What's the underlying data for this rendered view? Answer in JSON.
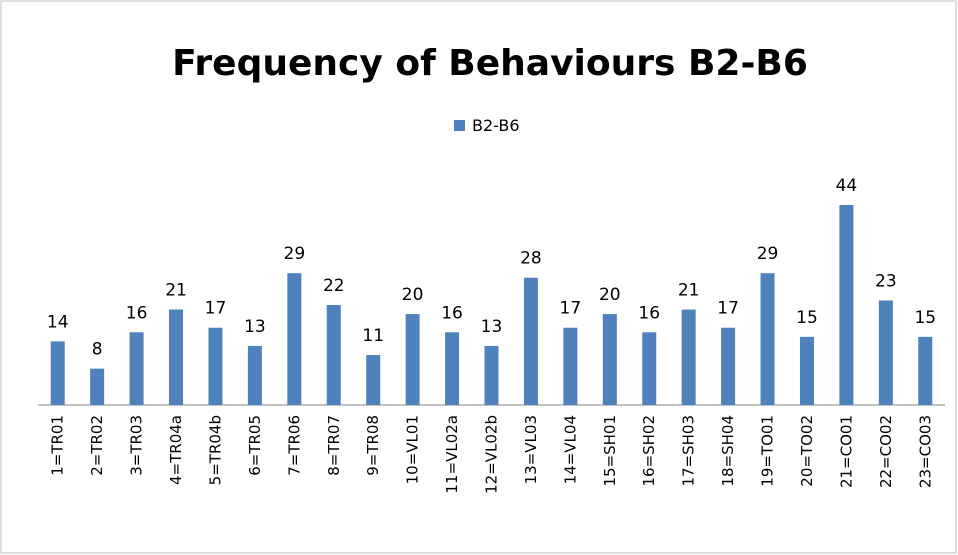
{
  "chart_data": {
    "type": "bar",
    "title": "Frequency of Behaviours B2-B6",
    "categories": [
      "1=TR01",
      "2=TR02",
      "3=TR03",
      "4=TR04a",
      "5=TR04b",
      "6=TR05",
      "7=TR06",
      "8=TR07",
      "9=TR08",
      "10=VL01",
      "11=VL02a",
      "12=VL02b",
      "13=VL03",
      "14=VL04",
      "15=SH01",
      "16=SH02",
      "17=SH03",
      "18=SH04",
      "19=TO01",
      "20=TO02",
      "21=CO01",
      "22=CO02",
      "23=CO03"
    ],
    "series": [
      {
        "name": "B2-B6",
        "color": "#4f81bd",
        "values": [
          14,
          8,
          16,
          21,
          17,
          13,
          29,
          22,
          11,
          20,
          16,
          13,
          28,
          17,
          20,
          16,
          21,
          17,
          29,
          15,
          44,
          23,
          15
        ]
      }
    ],
    "legend": "top"
  }
}
